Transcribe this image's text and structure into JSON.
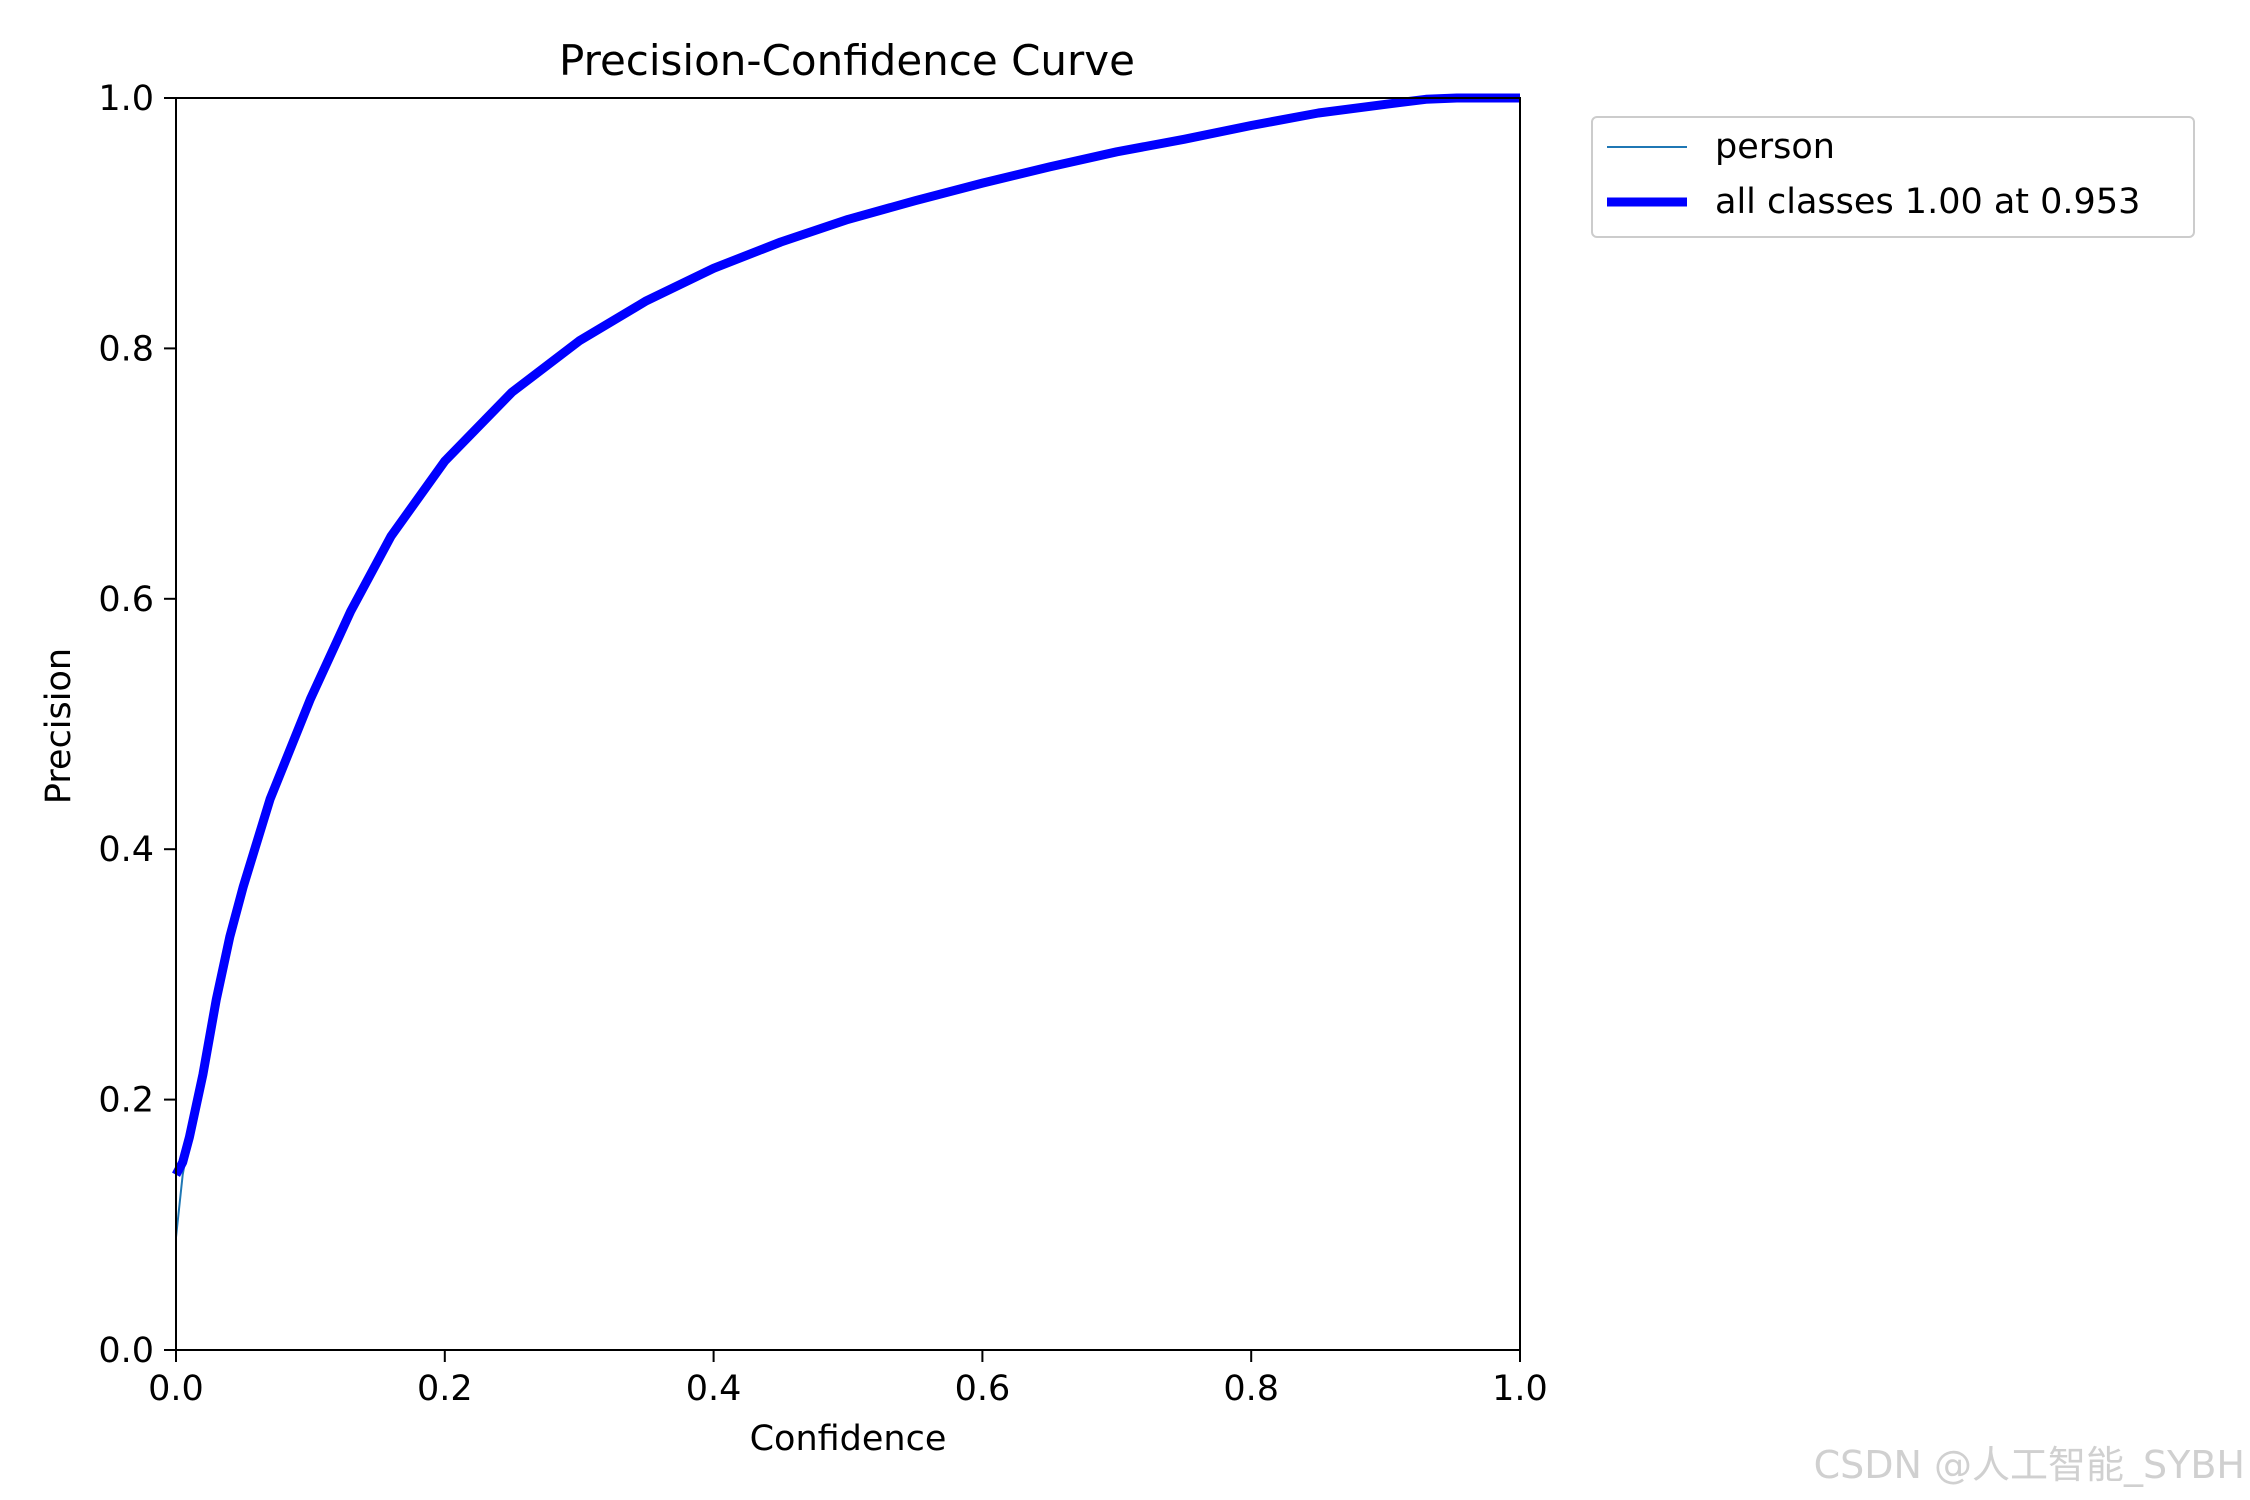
{
  "chart_data": {
    "type": "line",
    "title": "Precision-Confidence Curve",
    "xlabel": "Confidence",
    "ylabel": "Precision",
    "xlim": [
      0.0,
      1.0
    ],
    "ylim": [
      0.0,
      1.0
    ],
    "xticks": [
      "0.0",
      "0.2",
      "0.4",
      "0.6",
      "0.8",
      "1.0"
    ],
    "yticks": [
      "0.0",
      "0.2",
      "0.4",
      "0.6",
      "0.8",
      "1.0"
    ],
    "grid": false,
    "legend_position": "outside upper right",
    "series": [
      {
        "name": "person",
        "color": "#1f77b4",
        "style": "thin",
        "x": [
          0.0,
          0.005,
          0.01,
          0.02,
          0.03,
          0.04,
          0.05,
          0.07,
          0.1,
          0.13,
          0.16,
          0.2,
          0.25,
          0.3,
          0.35,
          0.4,
          0.45,
          0.5,
          0.55,
          0.6,
          0.65,
          0.7,
          0.75,
          0.8,
          0.85,
          0.9,
          0.93,
          0.953,
          1.0
        ],
        "y": [
          0.09,
          0.14,
          0.17,
          0.22,
          0.28,
          0.33,
          0.37,
          0.44,
          0.52,
          0.59,
          0.65,
          0.71,
          0.765,
          0.806,
          0.838,
          0.864,
          0.885,
          0.903,
          0.918,
          0.932,
          0.945,
          0.957,
          0.967,
          0.978,
          0.988,
          0.995,
          0.999,
          1.0,
          1.0
        ]
      },
      {
        "name": "all classes 1.00 at 0.953",
        "color": "#0000ff",
        "style": "thick",
        "x": [
          0.0,
          0.005,
          0.01,
          0.02,
          0.03,
          0.04,
          0.05,
          0.07,
          0.1,
          0.13,
          0.16,
          0.2,
          0.25,
          0.3,
          0.35,
          0.4,
          0.45,
          0.5,
          0.55,
          0.6,
          0.65,
          0.7,
          0.75,
          0.8,
          0.85,
          0.9,
          0.93,
          0.953,
          1.0
        ],
        "y": [
          0.14,
          0.15,
          0.17,
          0.22,
          0.28,
          0.33,
          0.37,
          0.44,
          0.52,
          0.59,
          0.65,
          0.71,
          0.765,
          0.806,
          0.838,
          0.864,
          0.885,
          0.903,
          0.918,
          0.932,
          0.945,
          0.957,
          0.967,
          0.978,
          0.988,
          0.995,
          0.999,
          1.0,
          1.0
        ]
      }
    ]
  },
  "watermark": "CSDN @人工智能_SYBH"
}
